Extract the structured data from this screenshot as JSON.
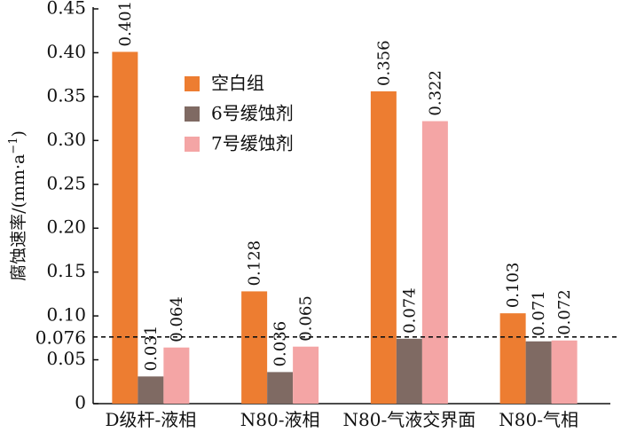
{
  "chart_data": {
    "type": "bar",
    "categories": [
      "D级杆-液相",
      "N80-液相",
      "N80-气液交界面",
      "N80-气相"
    ],
    "series": [
      {
        "name": "空白组",
        "values": [
          0.401,
          0.128,
          0.356,
          0.103
        ],
        "labels": [
          "0.401",
          "0.128",
          "0.356",
          "0.103"
        ],
        "color": "#ed7d31"
      },
      {
        "name": "6号缓蚀剂",
        "values": [
          0.031,
          0.036,
          0.074,
          0.071
        ],
        "labels": [
          "0.031",
          "0.036",
          "0.074",
          "0.071"
        ],
        "color": "#7f6a63"
      },
      {
        "name": "7号缓蚀剂",
        "values": [
          0.064,
          0.065,
          0.322,
          0.072
        ],
        "labels": [
          "0.064",
          "0.065",
          "0.322",
          "0.072"
        ],
        "color": "#f4a5a5"
      }
    ],
    "yticks": [
      "0",
      "0.05",
      "0.10",
      "0.15",
      "0.20",
      "0.25",
      "0.30",
      "0.35",
      "0.40",
      "0.45"
    ],
    "ylim": [
      0,
      0.45
    ],
    "ylabel_main": "腐蚀速率/(mm·a",
    "ylabel_sup": "−1",
    "ylabel_close": ")",
    "reference_line": {
      "value": 0.076,
      "label": "0.076",
      "style": "dashed"
    },
    "legend_position": "upper-left-center",
    "grid": false
  }
}
